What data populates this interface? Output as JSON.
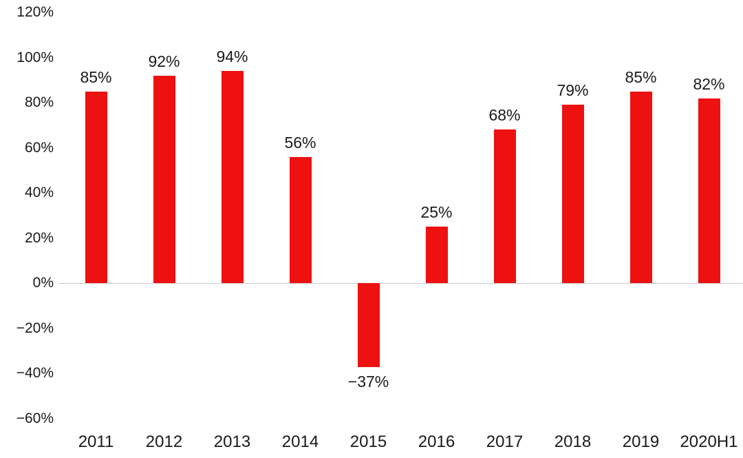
{
  "chart_data": {
    "type": "bar",
    "categories": [
      "2011",
      "2012",
      "2013",
      "2014",
      "2015",
      "2016",
      "2017",
      "2018",
      "2019",
      "2020H1"
    ],
    "values": [
      85,
      92,
      94,
      56,
      -37,
      25,
      68,
      79,
      85,
      82
    ],
    "data_labels": [
      "85%",
      "92%",
      "94%",
      "56%",
      "−37%",
      "25%",
      "68%",
      "79%",
      "85%",
      "82%"
    ],
    "title": "",
    "xlabel": "",
    "ylabel": "",
    "ylim": [
      -60,
      120
    ],
    "ytick_step": 20,
    "ytick_labels": [
      "120%",
      "100%",
      "80%",
      "60%",
      "40%",
      "20%",
      "0%",
      "−20%",
      "−40%",
      "−60%"
    ],
    "grid": false,
    "legend": false,
    "bar_color": "#ee1111",
    "axis_line_color": "#c9c9c9",
    "text_color": "#1a1a1a"
  }
}
